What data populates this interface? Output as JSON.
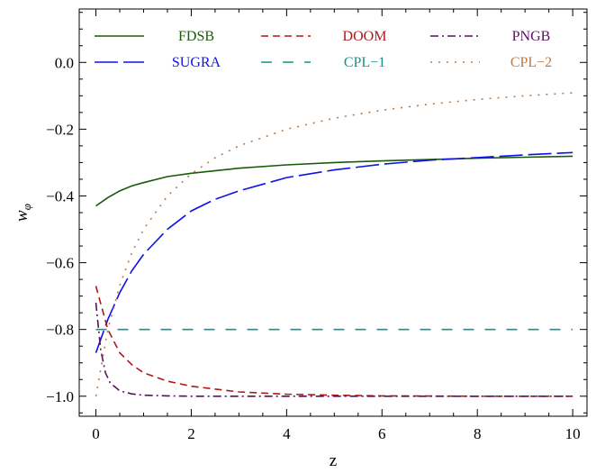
{
  "chart_data": {
    "type": "line",
    "xlabel": "z",
    "ylabel_main": "w",
    "ylabel_sub": "φ",
    "xlim": [
      -0.35,
      10.3
    ],
    "ylim": [
      -1.06,
      0.16
    ],
    "x_ticks": [
      0,
      2,
      4,
      6,
      8,
      10
    ],
    "x_tick_labels": [
      "0",
      "2",
      "4",
      "6",
      "8",
      "10"
    ],
    "y_ticks": [
      0.0,
      -0.2,
      -0.4,
      -0.6,
      -0.8,
      -1.0
    ],
    "y_tick_labels": [
      "0.0",
      "−0.2",
      "−0.4",
      "−0.6",
      "−0.8",
      "−1.0"
    ],
    "grid": false,
    "legend_position": "top",
    "series": [
      {
        "name": "FDSB",
        "color": "#1a5a0a",
        "dash": "solid",
        "x": [
          0,
          0.25,
          0.5,
          0.75,
          1,
          1.5,
          2,
          3,
          4,
          5,
          6,
          7,
          8,
          9,
          10
        ],
        "y": [
          -0.43,
          -0.405,
          -0.385,
          -0.37,
          -0.36,
          -0.342,
          -0.332,
          -0.317,
          -0.307,
          -0.3,
          -0.295,
          -0.291,
          -0.287,
          -0.284,
          -0.281
        ]
      },
      {
        "name": "SUGRA",
        "color": "#1010e8",
        "dash": "long",
        "x": [
          0,
          0.25,
          0.5,
          0.75,
          1,
          1.5,
          2,
          2.5,
          3,
          4,
          5,
          6,
          7,
          8,
          9,
          10
        ],
        "y": [
          -0.87,
          -0.77,
          -0.69,
          -0.625,
          -0.575,
          -0.5,
          -0.445,
          -0.41,
          -0.385,
          -0.345,
          -0.322,
          -0.305,
          -0.293,
          -0.285,
          -0.277,
          -0.27
        ]
      },
      {
        "name": "DOOM",
        "color": "#b01818",
        "dash": "dashed",
        "x": [
          0,
          0.25,
          0.5,
          0.75,
          1,
          1.5,
          2,
          3,
          4,
          5,
          6,
          8,
          10
        ],
        "y": [
          -0.67,
          -0.8,
          -0.87,
          -0.905,
          -0.93,
          -0.955,
          -0.97,
          -0.987,
          -0.994,
          -0.997,
          -0.999,
          -1.0,
          -1.0
        ]
      },
      {
        "name": "CPL−1",
        "color": "#15948f",
        "dash": "dashed2",
        "x": [
          0,
          10
        ],
        "y": [
          -0.8,
          -0.8
        ]
      },
      {
        "name": "PNGB",
        "color": "#5a1060",
        "dash": "dashdot",
        "x": [
          0,
          0.1,
          0.2,
          0.3,
          0.5,
          0.75,
          1,
          1.5,
          2,
          3,
          4,
          6,
          8,
          10
        ],
        "y": [
          -0.72,
          -0.86,
          -0.93,
          -0.96,
          -0.984,
          -0.993,
          -0.997,
          -0.999,
          -1.0,
          -1.0,
          -1.0,
          -1.0,
          -1.0,
          -1.0
        ]
      },
      {
        "name": "CPL−2",
        "color": "#b87a48",
        "dash": "dotted",
        "x": [
          0,
          0.25,
          0.5,
          0.75,
          1,
          1.5,
          2,
          2.5,
          3,
          4,
          5,
          6,
          7,
          8,
          9,
          10
        ],
        "y": [
          -1.0,
          -0.8,
          -0.668,
          -0.571,
          -0.5,
          -0.4,
          -0.333,
          -0.286,
          -0.25,
          -0.2,
          -0.167,
          -0.143,
          -0.125,
          -0.111,
          -0.1,
          -0.091
        ]
      }
    ]
  }
}
